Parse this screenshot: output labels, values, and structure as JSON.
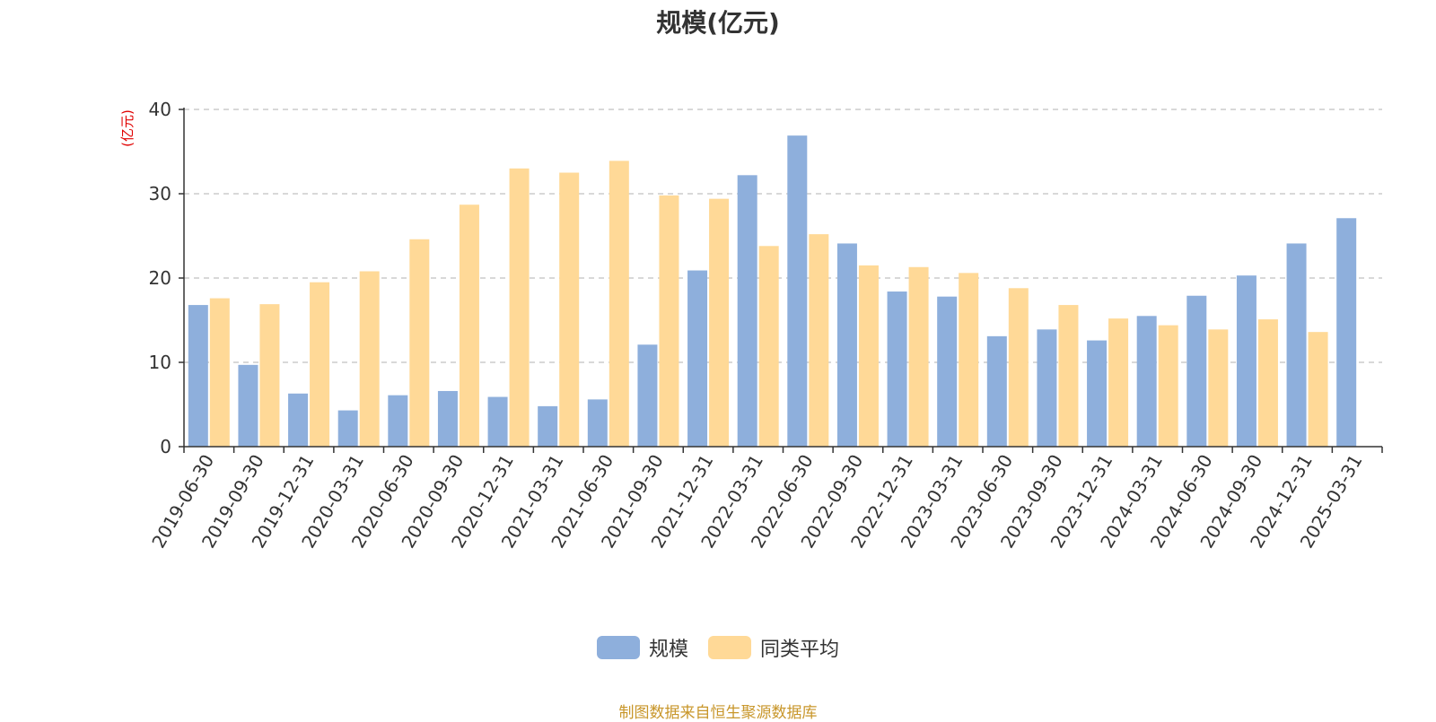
{
  "colors": {
    "scale": "#8eafdc",
    "peer_avg": "#ffd997",
    "axis": "#333333",
    "grid": "#cccccc",
    "unit": "#e00000",
    "source": "#c8962a"
  },
  "chart_data": {
    "type": "bar",
    "title": "规模(亿元)",
    "ylabel": "(亿元)",
    "ylim": [
      0,
      40
    ],
    "yticks": [
      0,
      10,
      20,
      30,
      40
    ],
    "grid": "horizontal dashed",
    "legend_position": "bottom-center",
    "categories": [
      "2019-06-30",
      "2019-09-30",
      "2019-12-31",
      "2020-03-31",
      "2020-06-30",
      "2020-09-30",
      "2020-12-31",
      "2021-03-31",
      "2021-06-30",
      "2021-09-30",
      "2021-12-31",
      "2022-03-31",
      "2022-06-30",
      "2022-09-30",
      "2022-12-31",
      "2023-03-31",
      "2023-06-30",
      "2023-09-30",
      "2023-12-31",
      "2024-03-31",
      "2024-06-30",
      "2024-09-30",
      "2024-12-31",
      "2025-03-31"
    ],
    "series": [
      {
        "name": "规模",
        "values": [
          16.8,
          9.7,
          6.3,
          4.3,
          6.1,
          6.6,
          5.9,
          4.8,
          5.6,
          12.1,
          20.9,
          32.2,
          36.9,
          24.1,
          18.4,
          17.8,
          13.1,
          13.9,
          12.6,
          15.5,
          17.9,
          20.3,
          24.1,
          27.1
        ]
      },
      {
        "name": "同类平均",
        "values": [
          17.6,
          16.9,
          19.5,
          20.8,
          24.6,
          28.7,
          33.0,
          32.5,
          33.9,
          29.8,
          29.4,
          23.8,
          25.2,
          21.5,
          21.3,
          20.6,
          18.8,
          16.8,
          15.2,
          14.4,
          13.9,
          15.1,
          13.6,
          null
        ]
      }
    ]
  },
  "legend": {
    "items": [
      "规模",
      "同类平均"
    ]
  },
  "footer": {
    "source": "制图数据来自恒生聚源数据库"
  }
}
